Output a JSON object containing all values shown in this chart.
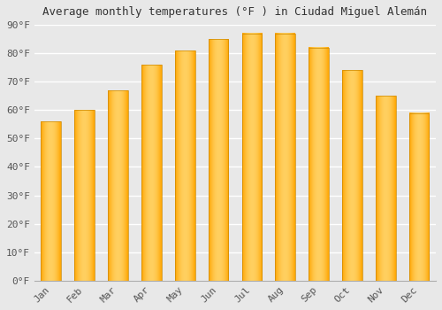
{
  "title": "Average monthly temperatures (°F ) in Ciudad Miguel Alemán",
  "months": [
    "Jan",
    "Feb",
    "Mar",
    "Apr",
    "May",
    "Jun",
    "Jul",
    "Aug",
    "Sep",
    "Oct",
    "Nov",
    "Dec"
  ],
  "values": [
    56,
    60,
    67,
    76,
    81,
    85,
    87,
    87,
    82,
    74,
    65,
    59
  ],
  "bar_color_main": "#FFA500",
  "bar_color_light": "#FFD060",
  "bar_edge_color": "#CC8800",
  "ylim": [
    0,
    90
  ],
  "yticks": [
    0,
    10,
    20,
    30,
    40,
    50,
    60,
    70,
    80,
    90
  ],
  "ytick_labels": [
    "0°F",
    "10°F",
    "20°F",
    "30°F",
    "40°F",
    "50°F",
    "60°F",
    "70°F",
    "80°F",
    "90°F"
  ],
  "background_color": "#e8e8e8",
  "plot_bg_color": "#e8e8e8",
  "grid_color": "#ffffff",
  "title_fontsize": 9,
  "tick_fontsize": 8,
  "tick_color": "#555555"
}
